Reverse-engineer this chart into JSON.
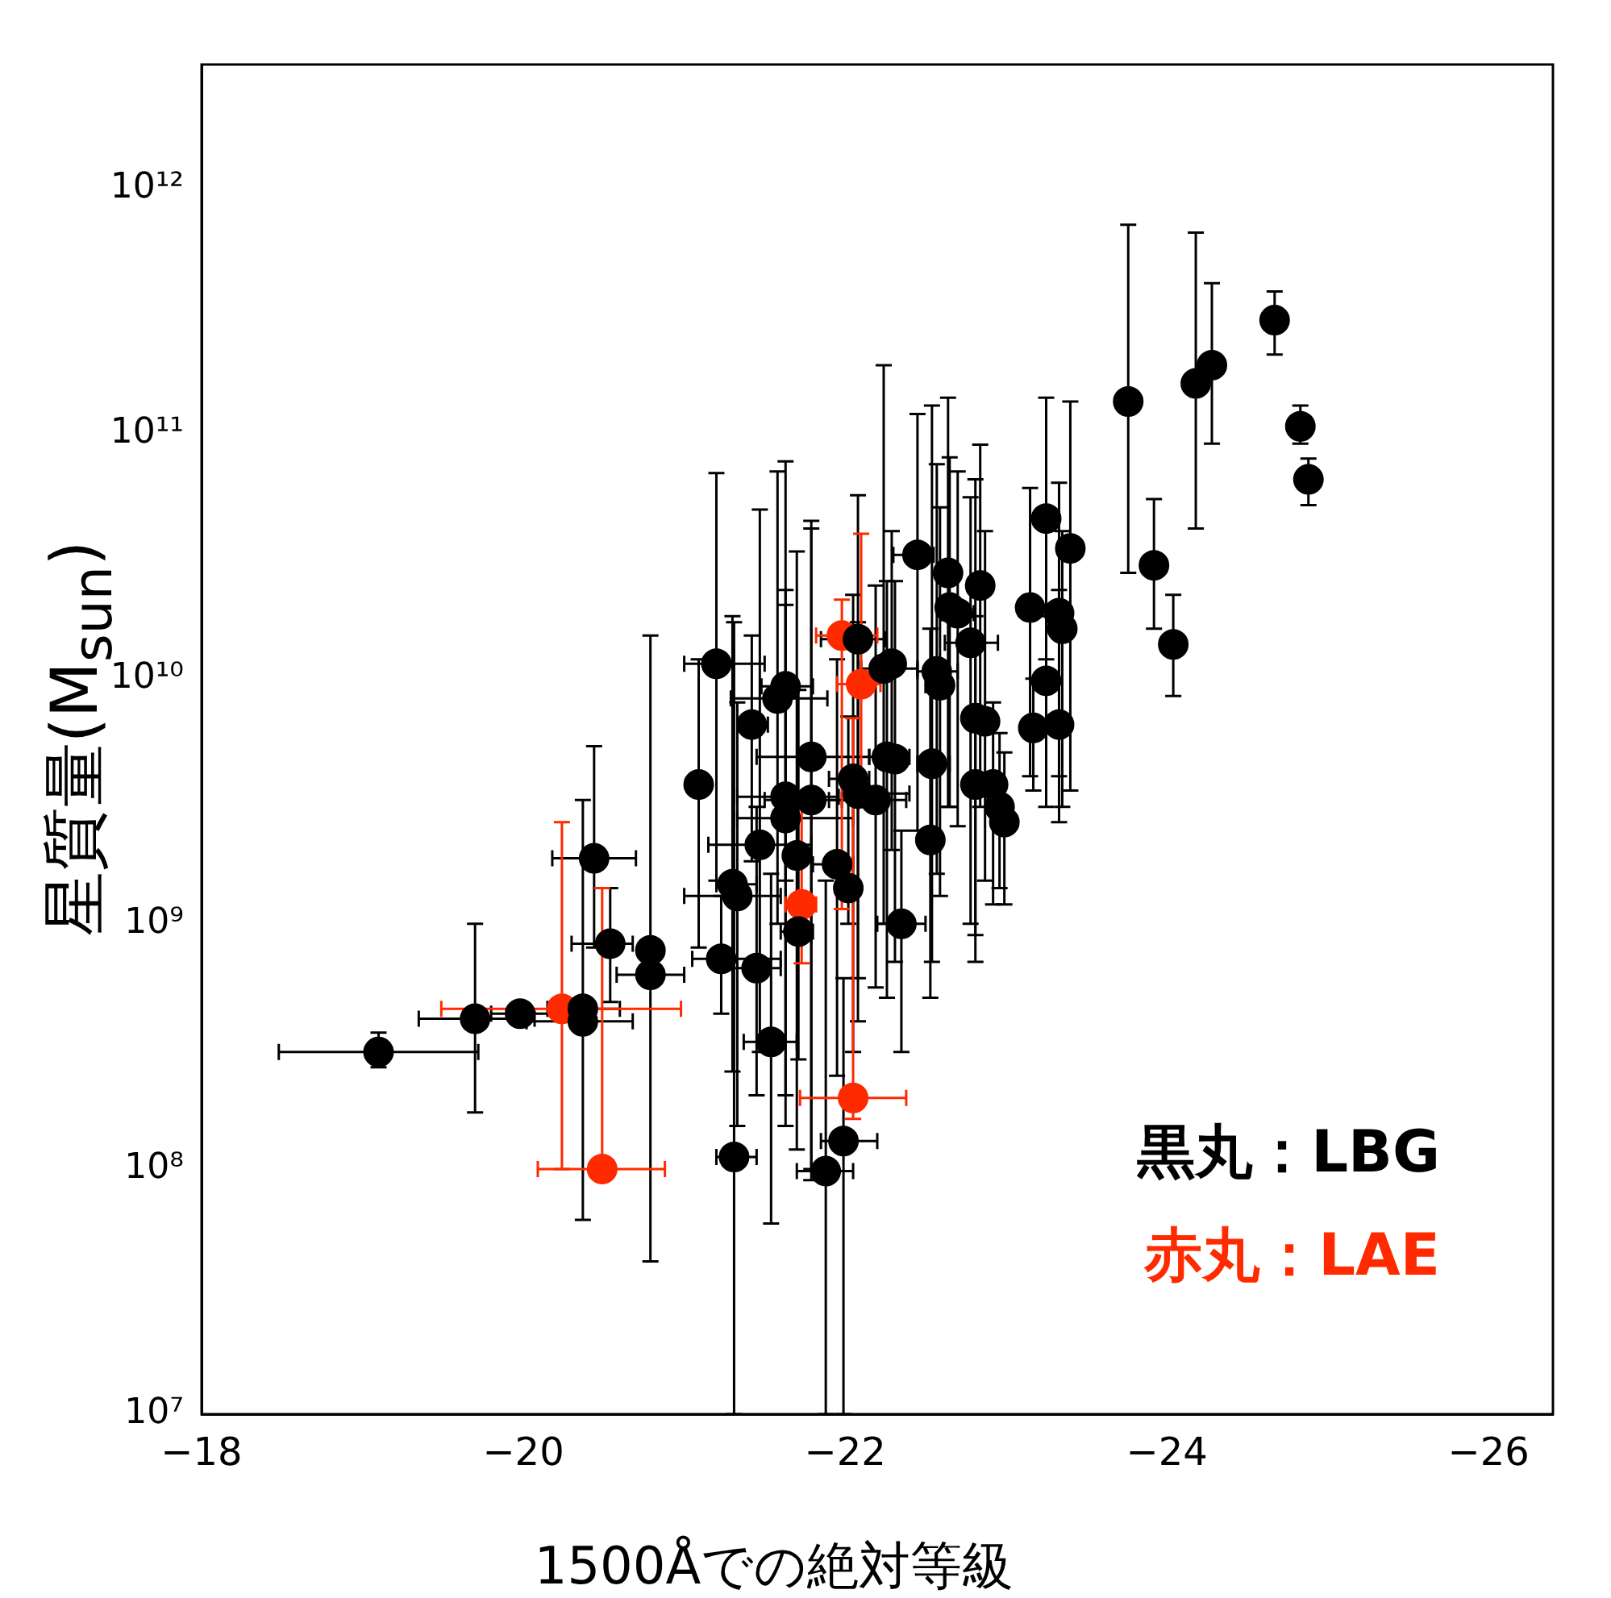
{
  "chart_data": {
    "type": "scatter",
    "xlabel": "1500Åでの絶対等級",
    "ylabel": "星質量(M$_{sun}$)",
    "log": "y",
    "grid": false,
    "legend": "bottom right",
    "marker": "circle",
    "xlim": [
      -18,
      -26.4
    ],
    "xticks": [
      {
        "value": -18,
        "label": "−18"
      },
      {
        "value": -20,
        "label": "−20"
      },
      {
        "value": -22,
        "label": "−22"
      },
      {
        "value": -24,
        "label": "−24"
      },
      {
        "value": -26,
        "label": "−26"
      }
    ],
    "ylim": [
      10000000,
      3200000000000
    ],
    "yticks": [
      {
        "value": 10000000,
        "label": "10⁷"
      },
      {
        "value": 100000000,
        "label": "10⁸"
      },
      {
        "value": 1000000000,
        "label": "10⁹"
      },
      {
        "value": 10000000000,
        "label": "10¹⁰"
      },
      {
        "value": 100000000000,
        "label": "10¹¹"
      },
      {
        "value": 1000000000000,
        "label": "10¹²"
      }
    ],
    "series": [
      {
        "name": "黒丸：LBG",
        "color": "#000000",
        "x": [
          -19.1,
          -19.7,
          -19.98,
          -20.37,
          -20.37,
          -20.44,
          -20.54,
          -20.79,
          -20.79,
          -21.09,
          -21.2,
          -21.23,
          -21.31,
          -21.3,
          -21.33,
          -21.42,
          -21.45,
          -21.47,
          -21.54,
          -21.58,
          -21.63,
          -21.63,
          -21.63,
          -21.7,
          -21.71,
          -21.79,
          -21.79,
          -21.88,
          -21.95,
          -22.02,
          -21.99,
          -22.05,
          -22.08,
          -22.08,
          -22.19,
          -22.24,
          -22.29,
          -22.26,
          -22.31,
          -22.35,
          -22.45,
          -22.53,
          -22.54,
          -22.57,
          -22.59,
          -22.64,
          -22.65,
          -22.7,
          -22.78,
          -22.84,
          -22.81,
          -22.87,
          -22.81,
          -22.92,
          -22.96,
          -22.99,
          -23.15,
          -23.17,
          -23.25,
          -23.25,
          -23.33,
          -23.33,
          -23.35,
          -23.4,
          -23.76,
          -23.92,
          -24.04,
          -24.18,
          -24.28,
          -24.67,
          -24.83,
          -24.88
        ],
        "values": [
          300000000.0,
          410000000.0,
          430000000.0,
          450000000.0,
          400000000.0,
          1850000000.0,
          830000000.0,
          780000000.0,
          620000000.0,
          3700000000.0,
          11500000000.0,
          720000000.0,
          112000000.0,
          1450000000.0,
          1300000000.0,
          6500000000.0,
          660000000.0,
          2100000000.0,
          330000000.0,
          8300000000.0,
          9300000000.0,
          3300000000.0,
          2700000000.0,
          1900000000.0,
          930000000.0,
          4800000000.0,
          3200000000.0,
          98000000.0,
          1750000000.0,
          1400000000.0,
          130000000.0,
          3900000000.0,
          3400000000.0,
          14500000000.0,
          3200000000.0,
          11000000000.0,
          11500000000.0,
          4800000000.0,
          4700000000.0,
          1000000000.0,
          32000000000.0,
          2200000000.0,
          4500000000.0,
          10700000000.0,
          9400000000.0,
          27000000000.0,
          19500000000.0,
          18500000000.0,
          14000000000.0,
          24000000000.0,
          6900000000.0,
          6700000000.0,
          3700000000.0,
          3700000000.0,
          3000000000.0,
          2600000000.0,
          19500000000.0,
          6300000000.0,
          45000000000.0,
          9800000000.0,
          18500000000.0,
          6500000000.0,
          16000000000.0,
          34000000000.0,
          135000000000.0,
          29000000000.0,
          13800000000.0,
          160000000000.0,
          190000000000.0,
          290000000000.0,
          107000000000.0,
          65000000000.0
        ],
        "errors": [
          [
            260000000.0,
            360000000.0
          ],
          [
            170000000.0,
            1000000000.0
          ],
          null,
          [
            62000000.0,
            3200000000.0
          ],
          null,
          [
            800000000.0,
            5300000000.0
          ],
          [
            480000000.0,
            1400000000.0
          ],
          [
            42000000.0,
            15000000000.0
          ],
          null,
          [
            800000000.0,
            12000000000.0
          ],
          [
            1500000000.0,
            69000000000.0
          ],
          [
            430000000.0,
            1300000000.0
          ],
          [
            10000000.0,
            17000000000.0
          ],
          [
            250000000.0,
            18000000000.0
          ],
          [
            150000000.0,
            8000000000.0
          ],
          [
            1800000000.0,
            15000000000.0
          ],
          [
            200000000.0,
            3000000000.0
          ],
          [
            300000000.0,
            49000000000.0
          ],
          [
            60000000.0,
            1600000000.0
          ],
          [
            1000000000.0,
            70000000000.0
          ],
          [
            1500000000.0,
            77000000000.0
          ],
          [
            150000000.0,
            23000000000.0
          ],
          [
            200000000.0,
            20000000000.0
          ],
          [
            120000000.0,
            33000000000.0
          ],
          [
            280000000.0,
            9000000000.0
          ],
          [
            100000000.0,
            41000000000.0
          ],
          [
            90000000.0,
            44000000000.0
          ],
          [
            10000000.0,
            1500000000.0
          ],
          [
            240000000.0,
            12000000000.0
          ],
          [
            1000000000.0,
            7000000000.0
          ],
          [
            10000000.0,
            600000000.0
          ],
          [
            300000000.0,
            22000000000.0
          ],
          [
            400000000.0,
            17000000000.0
          ],
          [
            600000000.0,
            56000000000.0
          ],
          [
            550000000.0,
            24000000000.0
          ],
          [
            1000000000.0,
            190000000000.0
          ],
          [
            2000000000.0,
            40000000000.0
          ],
          [
            500000000.0,
            25000000000.0
          ],
          [
            700000000.0,
            25000000000.0
          ],
          [
            300000000.0,
            2400000000.0
          ],
          [
            2400000000.0,
            120000000000.0
          ],
          [
            500000000.0,
            16000000000.0
          ],
          [
            700000000.0,
            130000000000.0
          ],
          [
            1600000000.0,
            75000000000.0
          ],
          [
            1300000000.0,
            50000000000.0
          ],
          [
            3000000000.0,
            140000000000.0
          ],
          [
            3000000000.0,
            80000000000.0
          ],
          [
            2500000000.0,
            70000000000.0
          ],
          [
            1000000000.0,
            55000000000.0
          ],
          [
            3000000000.0,
            90000000000.0
          ],
          [
            900000000.0,
            65000000000.0
          ],
          [
            1500000000.0,
            40000000000.0
          ],
          [
            700000000.0,
            18000000000.0
          ],
          [
            1200000000.0,
            8000000000.0
          ],
          [
            1400000000.0,
            6000000000.0
          ],
          [
            1200000000.0,
            5000000000.0
          ],
          [
            4000000000.0,
            60000000000.0
          ],
          [
            3500000000.0,
            10000000000.0
          ],
          [
            12000000000.0,
            140000000000.0
          ],
          [
            3000000000.0,
            18000000000.0
          ],
          [
            4000000000.0,
            63000000000.0
          ],
          [
            2600000000.0,
            23000000000.0
          ],
          [
            3000000000.0,
            40000000000.0
          ],
          [
            3500000000.0,
            135000000000.0
          ],
          [
            27000000000.0,
            710000000000.0
          ],
          [
            16000000000.0,
            54000000000.0
          ],
          [
            8500000000.0,
            22000000000.0
          ],
          [
            41000000000.0,
            660000000000.0
          ],
          [
            91000000000.0,
            410000000000.0
          ],
          [
            210000000000.0,
            380000000000.0
          ],
          [
            91000000000.0,
            130000000000.0
          ],
          [
            51000000000.0,
            79000000000.0
          ]
        ],
        "xerrors": [
          [
            -19.72,
            -18.48
          ],
          [
            -20.07,
            -19.35
          ],
          [
            -20.2,
            -19.8
          ],
          [
            -20.6,
            -20.15
          ],
          [
            -20.68,
            -20.02
          ],
          [
            -20.7,
            -20.18
          ],
          [
            -20.68,
            -20.3
          ],
          null,
          [
            -21.0,
            -20.58
          ],
          null,
          [
            -21.5,
            -21.0
          ],
          [
            -21.6,
            -21.05
          ],
          [
            -21.45,
            -21.2
          ],
          [
            -21.45,
            -21.2
          ],
          [
            -21.6,
            -21.0
          ],
          [
            -21.52,
            -21.35
          ],
          [
            -21.6,
            -21.3
          ],
          [
            -21.79,
            -21.15
          ],
          [
            -21.7,
            -21.37
          ],
          [
            -21.89,
            -21.29
          ],
          [
            -21.8,
            -21.48
          ],
          [
            -21.96,
            -21.33
          ],
          [
            -22.05,
            -21.33
          ],
          null,
          [
            -21.8,
            -21.6
          ],
          [
            -22.15,
            -21.45
          ],
          [
            -21.98,
            -21.5
          ],
          [
            -22.05,
            -21.7
          ],
          [
            -22.05,
            -21.8
          ],
          null,
          [
            -22.2,
            -21.85
          ],
          [
            -22.15,
            -21.9
          ],
          [
            -22.4,
            -22.0
          ],
          [
            -22.25,
            -21.85
          ],
          [
            -22.38,
            -21.9
          ],
          [
            -22.45,
            -22.1
          ],
          null,
          [
            -22.4,
            -22.15
          ],
          null,
          [
            -22.5,
            -22.2
          ],
          [
            -22.55,
            -22.3
          ],
          null,
          [
            -22.65,
            -22.45
          ],
          [
            -22.7,
            -22.45
          ],
          [
            -22.65,
            -22.5
          ],
          null,
          null,
          [
            -22.8,
            -22.6
          ],
          [
            -22.95,
            -22.62
          ],
          null,
          null,
          null,
          null,
          null,
          null,
          null,
          null,
          null,
          null,
          null,
          null,
          null,
          null,
          null,
          null,
          null,
          null,
          null,
          null,
          null,
          null,
          null
        ]
      },
      {
        "name": "赤丸：LAE",
        "color": "#ff2a00",
        "x": [
          -20.24,
          -20.49,
          -21.98,
          -22.1,
          -21.73,
          -22.05
        ],
        "values": [
          450000000.0,
          100000000.0,
          15000000000.0,
          9500000000.0,
          1200000000.0,
          195000000.0
        ],
        "errors": [
          [
            100000000.0,
            2600000000.0
          ],
          [
            100000000.0,
            1400000000.0
          ],
          [
            1150000000.0,
            21000000000.0
          ],
          [
            3000000000.0,
            39000000000.0
          ],
          [
            690000000.0,
            3500000000.0
          ],
          [
            160000000.0,
            6900000000.0
          ]
        ],
        "xerrors": [
          [
            -20.98,
            -19.49
          ],
          [
            -20.88,
            -20.09
          ],
          [
            -22.2,
            -21.82
          ],
          [
            -22.22,
            -21.95
          ],
          [
            -21.82,
            -21.63
          ],
          [
            -22.38,
            -21.72
          ]
        ]
      }
    ]
  }
}
